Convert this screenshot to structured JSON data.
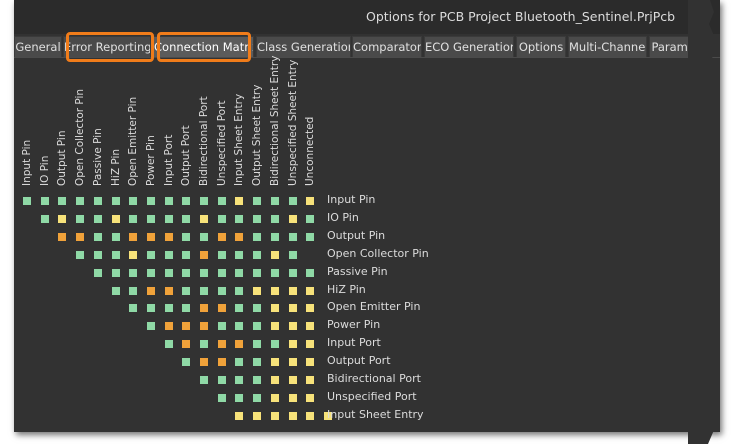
{
  "window": {
    "title": "Options for PCB Project Bluetooth_Sentinel.PrjPcb"
  },
  "tabs": [
    {
      "label": "General",
      "active": false,
      "highlighted": false
    },
    {
      "label": "Error Reporting",
      "active": false,
      "highlighted": true
    },
    {
      "label": "Connection Matrix",
      "active": true,
      "highlighted": true
    },
    {
      "label": "Class Generation",
      "active": false,
      "highlighted": false
    },
    {
      "label": "Comparator",
      "active": false,
      "highlighted": false
    },
    {
      "label": "ECO Generation",
      "active": false,
      "highlighted": false
    },
    {
      "label": "Options",
      "active": false,
      "highlighted": false
    },
    {
      "label": "Multi-Channel",
      "active": false,
      "highlighted": false
    },
    {
      "label": "Paramete",
      "active": false,
      "highlighted": false
    }
  ],
  "colors": {
    "no_report": "#8fd9a6",
    "warning": "#f7e27a",
    "error": "#f0a23a",
    "highlight": "#f07c1a"
  },
  "matrix": {
    "columns": [
      "Input Pin",
      "IO Pin",
      "Output Pin",
      "Open Collector Pin",
      "Passive Pin",
      "HiZ Pin",
      "Open Emitter Pin",
      "Power Pin",
      "Input Port",
      "Output Port",
      "Bidirectional Port",
      "Unspecified Port",
      "Input Sheet Entry",
      "Output Sheet Entry",
      "Bidirectional Sheet Entry",
      "Unspecified Sheet Entry",
      "Unconnected"
    ],
    "rows": [
      {
        "label": "Input Pin",
        "cells": "ggggggggggggygggy"
      },
      {
        "label": "IO Pin",
        "cells": "gyggyggggyggggyg"
      },
      {
        "label": "Output Pin",
        "cells": "ooggoooggoogggg"
      },
      {
        "label": "Open Collector Pin",
        "cells": "gggygggogggyg"
      },
      {
        "label": "Passive Pin",
        "cells": "ggggggggggggg"
      },
      {
        "label": "HiZ Pin",
        "cells": "ggooggggyyyy"
      },
      {
        "label": "Open Emitter Pin",
        "cells": "ggggooggyyy"
      },
      {
        "label": "Power Pin",
        "cells": "gooogggyyy"
      },
      {
        "label": "Input Port",
        "cells": "gogooggyy"
      },
      {
        "label": "Output Port",
        "cells": "googgyyy"
      },
      {
        "label": "Bidirectional Port",
        "cells": "ggggyyy"
      },
      {
        "label": "Unspecified Port",
        "cells": "gggyyy"
      },
      {
        "label": "Input Sheet Entry",
        "cells": "yyyyyy"
      }
    ]
  }
}
